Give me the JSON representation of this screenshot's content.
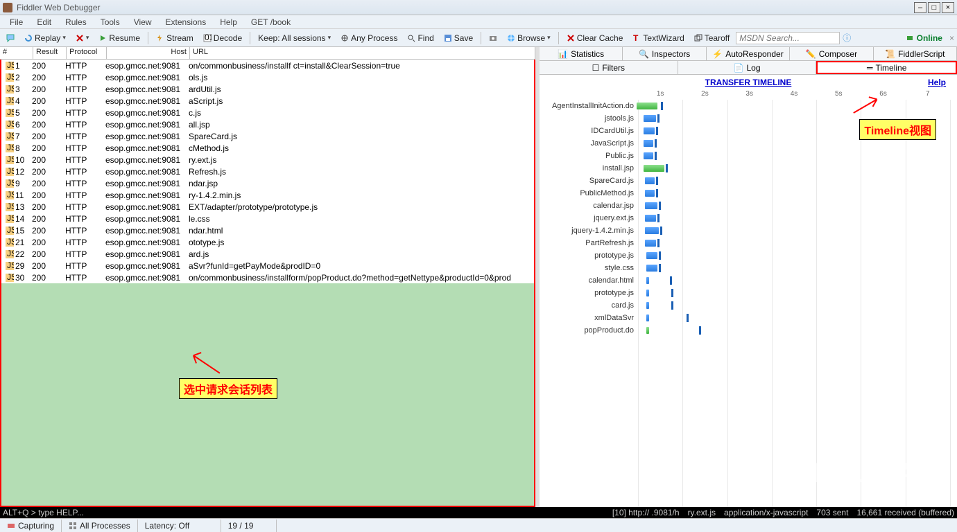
{
  "window": {
    "title": "Fiddler Web Debugger"
  },
  "menu": [
    "File",
    "Edit",
    "Rules",
    "Tools",
    "View",
    "Extensions",
    "Help",
    "GET /book"
  ],
  "toolbar": {
    "replay": "Replay",
    "resume": "Resume",
    "stream": "Stream",
    "decode": "Decode",
    "keep": "Keep: All sessions",
    "anyproc": "Any Process",
    "find": "Find",
    "save": "Save",
    "browse": "Browse",
    "clear": "Clear Cache",
    "textwizard": "TextWizard",
    "tearoff": "Tearoff",
    "search_placeholder": "MSDN Search...",
    "online": "Online"
  },
  "grid": {
    "headers": {
      "num": "#",
      "result": "Result",
      "protocol": "Protocol",
      "host": "Host",
      "url": "URL"
    },
    "rows": [
      {
        "n": "1",
        "r": "200",
        "p": "HTTP",
        "h": "esop.gmcc.net:9081",
        "u": "on/commonbusiness/installf                                              ct=install&ClearSession=true"
      },
      {
        "n": "2",
        "r": "200",
        "p": "HTTP",
        "h": "esop.gmcc.net:9081",
        "u": "ols.js"
      },
      {
        "n": "3",
        "r": "200",
        "p": "HTTP",
        "h": "esop.gmcc.net:9081",
        "u": "ardUtil.js"
      },
      {
        "n": "4",
        "r": "200",
        "p": "HTTP",
        "h": "esop.gmcc.net:9081",
        "u": "aScript.js"
      },
      {
        "n": "5",
        "r": "200",
        "p": "HTTP",
        "h": "esop.gmcc.net:9081",
        "u": "c.js"
      },
      {
        "n": "6",
        "r": "200",
        "p": "HTTP",
        "h": "esop.gmcc.net:9081",
        "u": "all.jsp"
      },
      {
        "n": "7",
        "r": "200",
        "p": "HTTP",
        "h": "esop.gmcc.net:9081",
        "u": "SpareCard.js"
      },
      {
        "n": "8",
        "r": "200",
        "p": "HTTP",
        "h": "esop.gmcc.net:9081",
        "u": "cMethod.js"
      },
      {
        "n": "10",
        "r": "200",
        "p": "HTTP",
        "h": "esop.gmcc.net:9081",
        "u": "ry.ext.js"
      },
      {
        "n": "12",
        "r": "200",
        "p": "HTTP",
        "h": "esop.gmcc.net:9081",
        "u": "Refresh.js"
      },
      {
        "n": "9",
        "r": "200",
        "p": "HTTP",
        "h": "esop.gmcc.net:9081",
        "u": "ndar.jsp"
      },
      {
        "n": "11",
        "r": "200",
        "p": "HTTP",
        "h": "esop.gmcc.net:9081",
        "u": "ry-1.4.2.min.js"
      },
      {
        "n": "13",
        "r": "200",
        "p": "HTTP",
        "h": "esop.gmcc.net:9081",
        "u": "EXT/adapter/prototype/prototype.js"
      },
      {
        "n": "14",
        "r": "200",
        "p": "HTTP",
        "h": "esop.gmcc.net:9081",
        "u": "le.css"
      },
      {
        "n": "15",
        "r": "200",
        "p": "HTTP",
        "h": "esop.gmcc.net:9081",
        "u": "ndar.html"
      },
      {
        "n": "21",
        "r": "200",
        "p": "HTTP",
        "h": "esop.gmcc.net:9081",
        "u": "ototype.js"
      },
      {
        "n": "22",
        "r": "200",
        "p": "HTTP",
        "h": "esop.gmcc.net:9081",
        "u": "ard.js"
      },
      {
        "n": "29",
        "r": "200",
        "p": "HTTP",
        "h": "esop.gmcc.net:9081",
        "u": "aSvr?funId=getPayMode&prodID=0"
      },
      {
        "n": "30",
        "r": "200",
        "p": "HTTP",
        "h": "esop.gmcc.net:9081",
        "u": "on/commonbusiness/installform/popProduct.do?method=getNettype&productId=0&prod"
      }
    ]
  },
  "annotation1": "选中请求会话列表",
  "right_tabs1": [
    "Statistics",
    "Inspectors",
    "AutoResponder",
    "Composer",
    "FiddlerScript"
  ],
  "right_tabs2": [
    "Filters",
    "Log",
    "Timeline"
  ],
  "help": "Help",
  "timeline_title": "TRANSFER TIMELINE",
  "axis": [
    "1s",
    "2s",
    "3s",
    "4s",
    "5s",
    "6s",
    "7"
  ],
  "timeline": [
    {
      "label": "AgentInstallInitAction.do",
      "start": 0,
      "len": 30,
      "cls": "g",
      "mark": 35
    },
    {
      "label": "jstools.js",
      "start": 10,
      "len": 18,
      "mark": 30
    },
    {
      "label": "IDCardUtil.js",
      "start": 10,
      "len": 16,
      "mark": 28
    },
    {
      "label": "JavaScript.js",
      "start": 10,
      "len": 14,
      "mark": 26
    },
    {
      "label": "Public.js",
      "start": 10,
      "len": 14,
      "mark": 26
    },
    {
      "label": "install.jsp",
      "start": 10,
      "len": 30,
      "cls": "g",
      "mark": 42
    },
    {
      "label": "SpareCard.js",
      "start": 12,
      "len": 14,
      "mark": 28
    },
    {
      "label": "PublicMethod.js",
      "start": 12,
      "len": 14,
      "mark": 28
    },
    {
      "label": "calendar.jsp",
      "start": 12,
      "len": 18,
      "mark": 32
    },
    {
      "label": "jquery.ext.js",
      "start": 12,
      "len": 16,
      "mark": 30
    },
    {
      "label": "jquery-1.4.2.min.js",
      "start": 12,
      "len": 20,
      "mark": 34
    },
    {
      "label": "PartRefresh.js",
      "start": 12,
      "len": 16,
      "mark": 30
    },
    {
      "label": "prototype.js",
      "start": 14,
      "len": 16,
      "mark": 32
    },
    {
      "label": "style.css",
      "start": 14,
      "len": 16,
      "mark": 32
    },
    {
      "label": "calendar.html",
      "start": 14,
      "len": 4,
      "mark": 48
    },
    {
      "label": "prototype.js",
      "start": 14,
      "len": 4,
      "mark": 50
    },
    {
      "label": "card.js",
      "start": 14,
      "len": 4,
      "mark": 50
    },
    {
      "label": "xmlDataSvr",
      "start": 14,
      "len": 4,
      "mark": 72
    },
    {
      "label": "popProduct.do",
      "start": 14,
      "len": 4,
      "cls": "g",
      "mark": 90
    }
  ],
  "annotation2": "Timeline视图",
  "black": {
    "left": "ALT+Q > type HELP...",
    "r1": "[10] http://                    .9081/h",
    "r2": "ry.ext.js",
    "r3": "application/x-javascript",
    "r4": "703 sent",
    "r5": "16,661 received (buffered)"
  },
  "status": {
    "capturing": "Capturing",
    "processes": "All Processes",
    "latency": "Latency: Off",
    "count": "19 / 19"
  },
  "watermark": "HTML5学堂",
  "colors": {
    "selected_bg": "#b4ddb4",
    "highlight_red": "#ff0000",
    "highlight_yellow": "#ffff66"
  }
}
